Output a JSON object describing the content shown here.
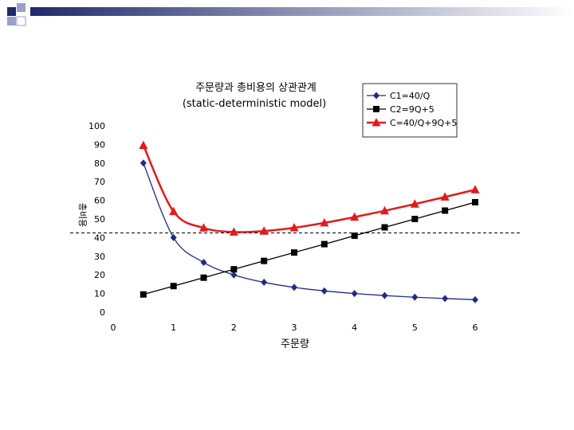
{
  "chart_data": {
    "type": "line",
    "title": [
      "주문량과 총비용의 상관관계",
      "(static-deterministic model)"
    ],
    "xlabel": "주문량",
    "ylabel": "총비용",
    "xlim": [
      0,
      6
    ],
    "ylim": [
      0,
      100
    ],
    "x_ticks": [
      0,
      1,
      2,
      3,
      4,
      5,
      6
    ],
    "y_ticks": [
      0,
      10,
      20,
      30,
      40,
      50,
      60,
      70,
      80,
      90,
      100
    ],
    "grid": false,
    "legend_position": "top-right",
    "reference_line_y": 42.5,
    "x": [
      0.5,
      1.0,
      1.5,
      2.0,
      2.5,
      3.0,
      3.5,
      4.0,
      4.5,
      5.0,
      5.5,
      6.0
    ],
    "series": [
      {
        "name": "C1=40/Q",
        "color": "#1f2a8a",
        "marker": "diamond",
        "values": [
          80,
          40,
          26.7,
          20,
          16,
          13.3,
          11.4,
          10,
          8.9,
          8,
          7.3,
          6.7
        ]
      },
      {
        "name": "C2=9Q+5",
        "color": "#000000",
        "marker": "square",
        "values": [
          9.5,
          14,
          18.5,
          23,
          27.5,
          32,
          36.5,
          41,
          45.5,
          50,
          54.5,
          59
        ]
      },
      {
        "name": "C=40/Q+9Q+5",
        "color": "#e41a1a",
        "marker": "triangle",
        "values": [
          89.5,
          54,
          45.2,
          43,
          43.5,
          45.3,
          47.9,
          51,
          54.4,
          58,
          61.8,
          65.7
        ]
      }
    ]
  },
  "decor": {
    "top_squares_colors": [
      "#1f2a6b",
      "#9aa0c8"
    ],
    "bar_gradient": [
      "#1f2a6b",
      "#ffffff"
    ]
  }
}
